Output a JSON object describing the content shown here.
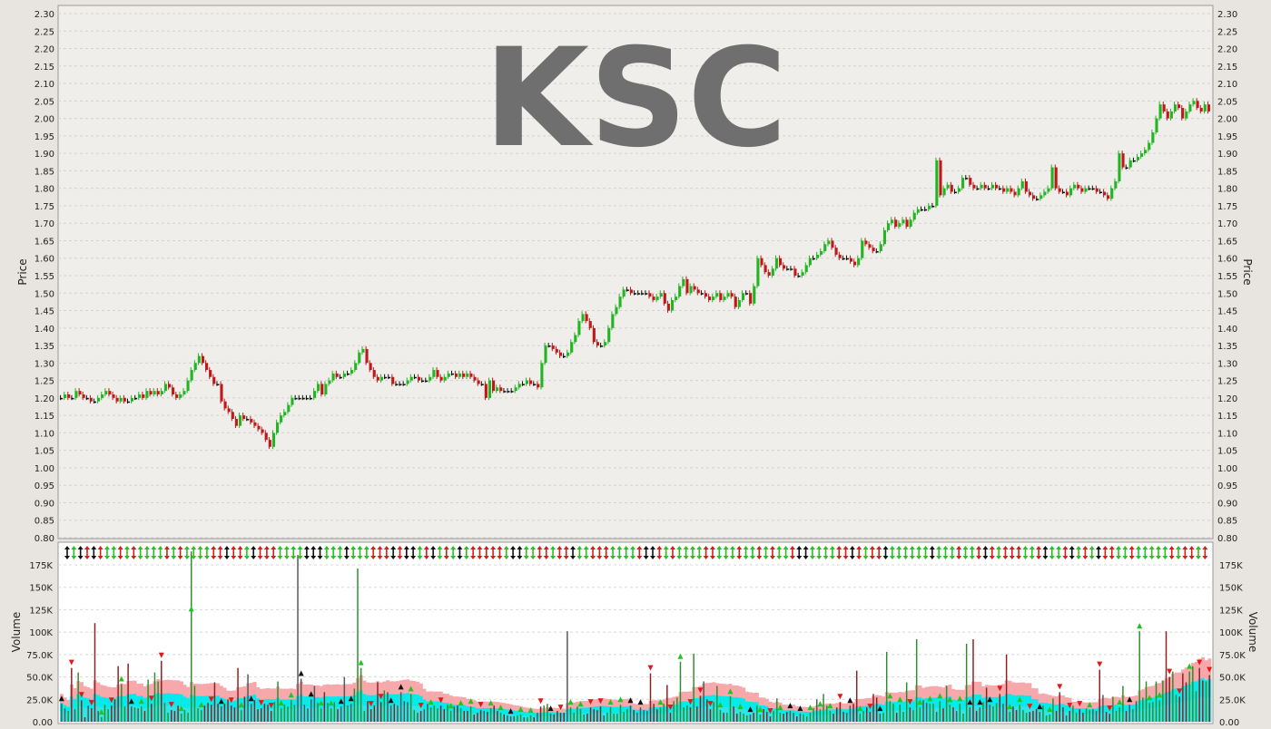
{
  "chart_data": [
    {
      "type": "candlestick",
      "symbol": "KSC",
      "ylabel": "Price",
      "ylim": [
        0.8,
        2.3
      ],
      "yticks": [
        "0.80",
        "0.85",
        "0.90",
        "0.95",
        "1.00",
        "1.05",
        "1.10",
        "1.15",
        "1.20",
        "1.25",
        "1.30",
        "1.35",
        "1.40",
        "1.45",
        "1.50",
        "1.55",
        "1.60",
        "1.65",
        "1.70",
        "1.75",
        "1.80",
        "1.85",
        "1.90",
        "1.95",
        "2.00",
        "2.05",
        "2.10",
        "2.15",
        "2.20",
        "2.25",
        "2.30"
      ],
      "grid": true,
      "colors": {
        "up": "#22b522",
        "down": "#c01818",
        "flat": "#111111",
        "background": "#f0eeeb"
      },
      "close_series": [
        1.2,
        1.21,
        1.2,
        1.2,
        1.22,
        1.21,
        1.2,
        1.2,
        1.19,
        1.19,
        1.2,
        1.21,
        1.22,
        1.21,
        1.2,
        1.19,
        1.2,
        1.19,
        1.19,
        1.2,
        1.2,
        1.21,
        1.2,
        1.22,
        1.21,
        1.22,
        1.21,
        1.22,
        1.24,
        1.23,
        1.21,
        1.2,
        1.21,
        1.22,
        1.25,
        1.28,
        1.3,
        1.32,
        1.3,
        1.28,
        1.26,
        1.24,
        1.24,
        1.19,
        1.17,
        1.16,
        1.14,
        1.12,
        1.15,
        1.14,
        1.14,
        1.13,
        1.12,
        1.11,
        1.1,
        1.08,
        1.06,
        1.1,
        1.13,
        1.15,
        1.16,
        1.18,
        1.2,
        1.2,
        1.2,
        1.2,
        1.2,
        1.2,
        1.22,
        1.24,
        1.21,
        1.24,
        1.25,
        1.27,
        1.26,
        1.26,
        1.27,
        1.27,
        1.28,
        1.3,
        1.33,
        1.34,
        1.3,
        1.28,
        1.26,
        1.25,
        1.26,
        1.26,
        1.26,
        1.24,
        1.24,
        1.24,
        1.24,
        1.25,
        1.26,
        1.26,
        1.25,
        1.25,
        1.25,
        1.26,
        1.28,
        1.26,
        1.25,
        1.26,
        1.27,
        1.27,
        1.26,
        1.27,
        1.26,
        1.27,
        1.26,
        1.25,
        1.24,
        1.24,
        1.2,
        1.25,
        1.22,
        1.23,
        1.22,
        1.22,
        1.22,
        1.22,
        1.23,
        1.24,
        1.24,
        1.25,
        1.24,
        1.24,
        1.23,
        1.3,
        1.35,
        1.35,
        1.34,
        1.33,
        1.32,
        1.32,
        1.33,
        1.36,
        1.38,
        1.42,
        1.44,
        1.42,
        1.4,
        1.36,
        1.35,
        1.35,
        1.36,
        1.4,
        1.44,
        1.46,
        1.49,
        1.51,
        1.51,
        1.5,
        1.5,
        1.5,
        1.5,
        1.5,
        1.49,
        1.48,
        1.49,
        1.5,
        1.47,
        1.45,
        1.48,
        1.49,
        1.52,
        1.54,
        1.5,
        1.52,
        1.51,
        1.5,
        1.5,
        1.49,
        1.48,
        1.49,
        1.5,
        1.48,
        1.49,
        1.5,
        1.49,
        1.46,
        1.48,
        1.5,
        1.5,
        1.47,
        1.52,
        1.6,
        1.58,
        1.56,
        1.55,
        1.57,
        1.6,
        1.58,
        1.57,
        1.57,
        1.57,
        1.55,
        1.55,
        1.56,
        1.58,
        1.6,
        1.6,
        1.61,
        1.62,
        1.64,
        1.65,
        1.63,
        1.61,
        1.6,
        1.6,
        1.6,
        1.59,
        1.58,
        1.6,
        1.65,
        1.64,
        1.63,
        1.62,
        1.62,
        1.64,
        1.68,
        1.7,
        1.71,
        1.69,
        1.7,
        1.71,
        1.69,
        1.71,
        1.73,
        1.74,
        1.74,
        1.74,
        1.75,
        1.75,
        1.88,
        1.78,
        1.8,
        1.81,
        1.79,
        1.79,
        1.8,
        1.83,
        1.83,
        1.81,
        1.8,
        1.8,
        1.81,
        1.8,
        1.8,
        1.81,
        1.8,
        1.8,
        1.79,
        1.8,
        1.79,
        1.78,
        1.8,
        1.82,
        1.79,
        1.78,
        1.77,
        1.77,
        1.78,
        1.79,
        1.8,
        1.86,
        1.8,
        1.79,
        1.79,
        1.78,
        1.8,
        1.81,
        1.8,
        1.79,
        1.8,
        1.8,
        1.8,
        1.79,
        1.79,
        1.78,
        1.77,
        1.8,
        1.82,
        1.9,
        1.86,
        1.86,
        1.88,
        1.88,
        1.89,
        1.9,
        1.91,
        1.93,
        1.96,
        2.0,
        2.04,
        2.02,
        2.0,
        2.02,
        2.04,
        2.03,
        2.0,
        2.02,
        2.04,
        2.05,
        2.03,
        2.02,
        2.04,
        2.02
      ]
    },
    {
      "type": "bar",
      "ylabel": "Volume",
      "ylim": [
        0,
        190000
      ],
      "yticks": [
        "0.00",
        "25.0K",
        "50.0K",
        "75.0K",
        "100K",
        "125K",
        "150K",
        "175K"
      ],
      "grid": true,
      "series_colors": {
        "volume_up": "#2e8b2e",
        "volume_down": "#8b2020",
        "volume_flat": "#555555",
        "avg_band_1": "#f7a8aa",
        "avg_band_2": "#00ecec"
      },
      "volume_series": [
        20000,
        15000,
        12000,
        60000,
        14000,
        55000,
        24000,
        5000,
        18000,
        15000,
        110000,
        12000,
        5000,
        19000,
        14000,
        18000,
        25000,
        62000,
        42000,
        17000,
        65000,
        17000,
        16000,
        15000,
        17000,
        12000,
        47000,
        20000,
        55000,
        45000,
        68000,
        21000,
        10000,
        13000,
        12000,
        18000,
        9000,
        13000,
        10000,
        190000,
        40000,
        15000,
        13000,
        18000,
        21000,
        19000,
        44000,
        20000,
        17000,
        20000,
        25000,
        18000,
        16000,
        60000,
        13000,
        28000,
        53000,
        20000,
        24000,
        14000,
        15000,
        20000,
        19000,
        12000,
        22000,
        45000,
        15000,
        19000,
        17000,
        24000,
        19000,
        186000,
        48000,
        19000,
        15000,
        25000,
        40000,
        21000,
        15000,
        33000,
        21000,
        15000,
        22000,
        14000,
        17000,
        50000,
        18000,
        20000,
        37000,
        171000,
        60000,
        12000,
        23000,
        14000,
        18000,
        44000,
        22000,
        35000,
        33000,
        18000,
        20000,
        18000,
        33000,
        23000,
        22000,
        31000,
        13000,
        10000,
        12000,
        14000,
        20000,
        16000,
        18000,
        15000,
        18000,
        14000,
        19000,
        12000,
        17000,
        18000,
        15000,
        12000,
        12000,
        17000,
        8000,
        10000,
        13000,
        12000,
        11000,
        15000,
        18000,
        12000,
        10000,
        8000,
        7000,
        6000,
        6000,
        7000,
        8000,
        5000,
        5000,
        7000,
        5000,
        10000,
        17000,
        18000,
        20000,
        9000,
        8000,
        12000,
        10000,
        10000,
        101000,
        16000,
        10000,
        17000,
        14000,
        8000,
        9000,
        16000,
        14000,
        13000,
        17000,
        7000,
        10000,
        16000,
        9000,
        9000,
        19000,
        11000,
        14000,
        18000,
        13000,
        10000,
        16000,
        13000,
        12000,
        54000,
        20000,
        14000,
        16000,
        20000,
        41000,
        10000,
        23000,
        27000,
        67000,
        16000,
        18000,
        16000,
        76000,
        17000,
        29000,
        45000,
        25000,
        14000,
        22000,
        40000,
        13000,
        10000,
        10000,
        28000,
        17000,
        9000,
        11000,
        9000,
        7000,
        8000,
        10000,
        18000,
        8000,
        14000,
        11000,
        6000,
        12000,
        26000,
        10000,
        9000,
        11000,
        12000,
        10000,
        6000,
        9000,
        8000,
        6000,
        10000,
        15000,
        25000,
        14000,
        31000,
        18000,
        12000,
        9000,
        16000,
        22000,
        11000,
        10000,
        18000,
        20000,
        57000,
        9000,
        12000,
        16000,
        11000,
        31000,
        27000,
        9000,
        10000,
        78000,
        23000,
        20000,
        10000,
        19000,
        11000,
        44000,
        16000,
        13000,
        92000,
        16000,
        24000,
        21000,
        20000,
        20000,
        11000,
        23000,
        15000,
        40000,
        19000,
        16000,
        12000,
        20000,
        9000,
        87000,
        16000,
        92000,
        12000,
        16000,
        22000,
        38000,
        19000,
        17000,
        21000,
        31000,
        20000,
        75000,
        11000,
        17000,
        13000,
        19000,
        13000,
        10000,
        11000,
        12000,
        14000,
        11000,
        18000,
        7000,
        8000,
        26000,
        12000,
        33000,
        16000,
        7000,
        12000,
        18000,
        10000,
        14000,
        10000,
        15000,
        13000,
        14000,
        12000,
        58000,
        30000,
        11000,
        9000,
        28000,
        12000,
        16000,
        40000,
        12000,
        19000,
        14000,
        23000,
        101000,
        27000,
        45000,
        21000,
        22000,
        45000,
        24000,
        46000,
        101000,
        50000,
        56000,
        30000,
        28000,
        54000,
        44000,
        56000,
        62000,
        34000,
        60000,
        46000,
        45000,
        52000
      ]
    }
  ],
  "price_axis": {
    "label": "Price"
  },
  "volume_axis": {
    "label": "Volume"
  },
  "watermark": "KSC"
}
